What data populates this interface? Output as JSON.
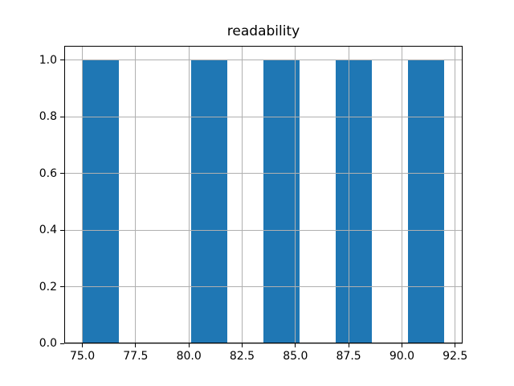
{
  "chart_data": {
    "type": "bar",
    "subtype": "histogram",
    "title": "readability",
    "bin_edges": [
      75.0,
      76.7,
      78.4,
      80.1,
      81.8,
      83.5,
      85.2,
      86.9,
      88.6,
      90.3,
      92.0
    ],
    "counts": [
      1,
      0,
      0,
      1,
      0,
      1,
      0,
      1,
      0,
      1
    ],
    "xlim": [
      74.15,
      92.85
    ],
    "ylim": [
      0,
      1.05
    ],
    "xticks": [
      75.0,
      77.5,
      80.0,
      82.5,
      85.0,
      87.5,
      90.0,
      92.5
    ],
    "xtick_labels": [
      "75.0",
      "77.5",
      "80.0",
      "82.5",
      "85.0",
      "87.5",
      "90.0",
      "92.5"
    ],
    "yticks": [
      0.0,
      0.2,
      0.4,
      0.6,
      0.8,
      1.0
    ],
    "ytick_labels": [
      "0.0",
      "0.2",
      "0.4",
      "0.6",
      "0.8",
      "1.0"
    ],
    "xlabel": "",
    "ylabel": "",
    "grid": true,
    "legend": false,
    "bar_color": "#1f77b4",
    "grid_color": "#b0b0b0",
    "axis_color": "#000000",
    "background_color": "#ffffff"
  }
}
